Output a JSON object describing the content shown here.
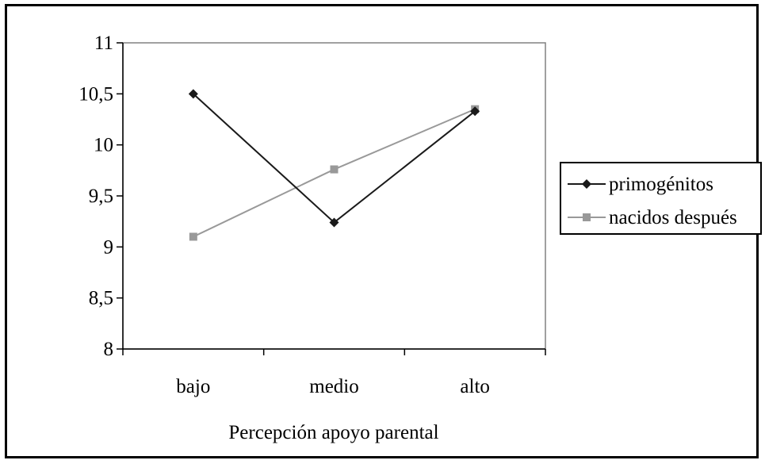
{
  "chart_data": {
    "type": "line",
    "title": "",
    "xlabel": "Percepción apoyo parental",
    "ylabel": "",
    "categories": [
      "bajo",
      "medio",
      "alto"
    ],
    "ylim": [
      8,
      11
    ],
    "yticks": [
      "8",
      "8,5",
      "9",
      "9,5",
      "10",
      "10,5",
      "11"
    ],
    "ytick_values": [
      8,
      8.5,
      9,
      9.5,
      10,
      10.5,
      11
    ],
    "grid": false,
    "legend_position": "right",
    "series": [
      {
        "name": "primogénitos",
        "values": [
          10.5,
          9.24,
          10.33
        ],
        "color": "#1a1a1a",
        "marker": "diamond"
      },
      {
        "name": "nacidos después",
        "values": [
          9.1,
          9.76,
          10.35
        ],
        "color": "#999999",
        "marker": "square"
      }
    ]
  }
}
